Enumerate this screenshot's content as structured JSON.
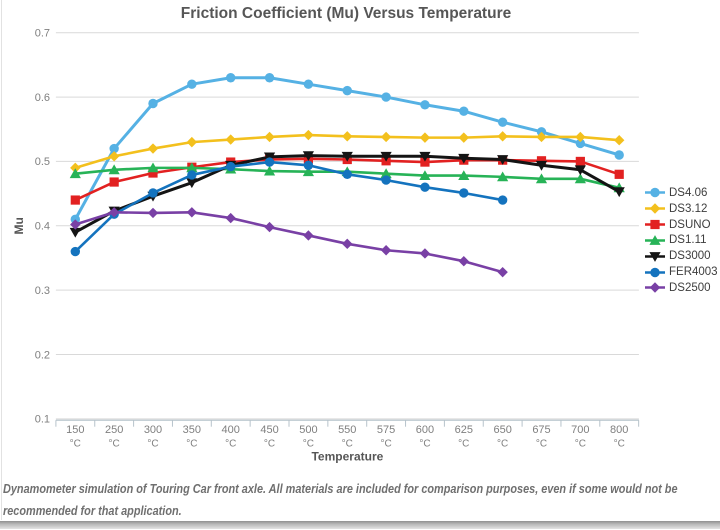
{
  "page": {
    "caption": "Dynamometer simulation of Touring Car front axle. All materials are included for comparison purposes, even if some would not be recommended for that application."
  },
  "chart_data": {
    "type": "line",
    "title": "Friction Coefficient (Mu) Versus Temperature",
    "xlabel": "Temperature",
    "ylabel": "Mu",
    "categories": [
      "150",
      "250",
      "300",
      "350",
      "400",
      "450",
      "500",
      "550",
      "575",
      "600",
      "625",
      "650",
      "675",
      "700",
      "800"
    ],
    "category_unit": "°C",
    "ylim": [
      0.1,
      0.7
    ],
    "yticks": [
      0.1,
      0.2,
      0.3,
      0.4,
      0.5,
      0.6,
      0.7
    ],
    "grid": true,
    "legend_position": "right",
    "series": [
      {
        "name": "DS4.06",
        "color": "#55B1E4",
        "marker": "circle",
        "values": [
          0.41,
          0.52,
          0.59,
          0.62,
          0.63,
          0.63,
          0.62,
          0.61,
          0.6,
          0.588,
          0.578,
          0.561,
          0.546,
          0.528,
          0.51
        ]
      },
      {
        "name": "DS3.12",
        "color": "#F3C01D",
        "marker": "diamond",
        "values": [
          0.49,
          0.508,
          0.52,
          0.53,
          0.534,
          0.538,
          0.541,
          0.539,
          0.538,
          0.537,
          0.537,
          0.539,
          0.538,
          0.538,
          0.533
        ]
      },
      {
        "name": "DSUNO",
        "color": "#E22121",
        "marker": "square",
        "values": [
          0.44,
          0.468,
          0.482,
          0.491,
          0.499,
          0.503,
          0.504,
          0.503,
          0.501,
          0.499,
          0.502,
          0.502,
          0.501,
          0.5,
          0.48
        ]
      },
      {
        "name": "DS1.11",
        "color": "#27B357",
        "marker": "triangle-up",
        "values": [
          0.481,
          0.487,
          0.49,
          0.49,
          0.488,
          0.485,
          0.484,
          0.484,
          0.481,
          0.478,
          0.478,
          0.476,
          0.473,
          0.473,
          0.459
        ]
      },
      {
        "name": "DS3000",
        "color": "#141414",
        "marker": "triangle-down",
        "values": [
          0.39,
          0.423,
          0.446,
          0.467,
          0.494,
          0.507,
          0.509,
          0.508,
          0.508,
          0.508,
          0.505,
          0.503,
          0.494,
          0.487,
          0.453
        ]
      },
      {
        "name": "FER4003",
        "color": "#1473BE",
        "marker": "circle",
        "values": [
          0.36,
          0.418,
          0.451,
          0.479,
          0.492,
          0.499,
          0.494,
          0.48,
          0.471,
          0.46,
          0.451,
          0.44,
          null,
          null,
          null
        ]
      },
      {
        "name": "DS2500",
        "color": "#7940A5",
        "marker": "diamond",
        "values": [
          0.402,
          0.421,
          0.42,
          0.421,
          0.412,
          0.398,
          0.385,
          0.372,
          0.362,
          0.357,
          0.345,
          0.328,
          null,
          null,
          null
        ]
      }
    ]
  }
}
